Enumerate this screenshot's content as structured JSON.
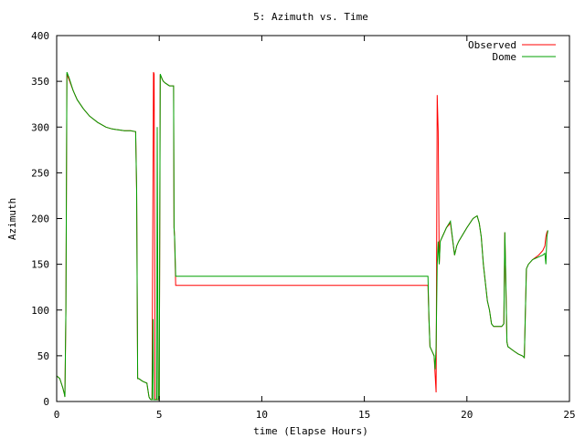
{
  "chart_data": {
    "type": "line",
    "title": "5: Azimuth vs. Time",
    "xlabel": "time (Elapse Hours)",
    "ylabel": "Azimuth",
    "xlim": [
      0,
      25
    ],
    "ylim": [
      0,
      400
    ],
    "xticks": [
      "0",
      "5",
      "10",
      "15",
      "20",
      "25"
    ],
    "yticks": [
      "0",
      "50",
      "100",
      "150",
      "200",
      "250",
      "300",
      "350",
      "400"
    ],
    "grid": false,
    "legend_position": "top-right",
    "series": [
      {
        "name": "Observed",
        "color": "#ff0000",
        "x": [
          0,
          0.15,
          0.3,
          0.38,
          0.4,
          0.45,
          0.5,
          0.6,
          0.8,
          1.0,
          1.3,
          1.6,
          2.0,
          2.4,
          2.7,
          3.0,
          3.3,
          3.6,
          3.85,
          3.9,
          3.95,
          4.0,
          4.2,
          4.4,
          4.5,
          4.55,
          4.6,
          4.65,
          4.7,
          4.72,
          4.75,
          4.8,
          4.85,
          4.88,
          4.9,
          4.95,
          5.0,
          5.05,
          5.1,
          5.15,
          5.2,
          5.3,
          5.5,
          5.7,
          5.72,
          5.75,
          5.8,
          6.0,
          8.0,
          10.0,
          12.0,
          14.0,
          16.0,
          18.0,
          18.1,
          18.15,
          18.2,
          18.3,
          18.4,
          18.45,
          18.5,
          18.55,
          18.6,
          18.65,
          18.7,
          18.8,
          19.0,
          19.2,
          19.4,
          19.5,
          19.6,
          20.0,
          20.3,
          20.5,
          20.6,
          20.7,
          20.8,
          20.9,
          21.0,
          21.1,
          21.2,
          21.3,
          21.4,
          21.5,
          21.6,
          21.7,
          21.8,
          21.85,
          21.9,
          21.95,
          22.0,
          22.3,
          22.5,
          22.7,
          22.8,
          22.9,
          23.0,
          23.2,
          23.5,
          23.7,
          23.8,
          23.85,
          23.9,
          23.95
        ],
        "y": [
          28,
          25,
          15,
          8,
          5,
          100,
          358,
          352,
          340,
          330,
          320,
          312,
          305,
          300,
          298,
          297,
          296,
          296,
          295,
          230,
          25,
          25,
          22,
          20,
          5,
          3,
          2,
          2,
          270,
          360,
          358,
          3,
          2,
          2,
          2,
          2,
          2,
          356,
          355,
          352,
          350,
          348,
          345,
          345,
          190,
          180,
          127,
          127,
          127,
          127,
          127,
          127,
          127,
          127,
          127,
          90,
          60,
          55,
          50,
          30,
          10,
          335,
          295,
          150,
          175,
          180,
          190,
          195,
          160,
          170,
          175,
          190,
          200,
          203,
          195,
          180,
          150,
          130,
          110,
          100,
          85,
          82,
          82,
          82,
          82,
          82,
          85,
          185,
          130,
          65,
          60,
          55,
          52,
          50,
          48,
          145,
          150,
          155,
          160,
          165,
          170,
          180,
          185,
          187
        ]
      },
      {
        "name": "Dome",
        "color": "#00a000",
        "x": [
          0,
          0.15,
          0.3,
          0.38,
          0.4,
          0.45,
          0.5,
          0.6,
          0.8,
          1.0,
          1.3,
          1.6,
          2.0,
          2.4,
          2.7,
          3.0,
          3.3,
          3.6,
          3.85,
          3.9,
          3.95,
          4.0,
          4.2,
          4.4,
          4.5,
          4.55,
          4.6,
          4.65,
          4.7,
          4.72,
          4.75,
          4.8,
          4.85,
          4.88,
          4.9,
          4.95,
          5.0,
          5.05,
          5.1,
          5.15,
          5.2,
          5.3,
          5.5,
          5.7,
          5.72,
          5.75,
          5.8,
          6.0,
          8.0,
          10.0,
          12.0,
          14.0,
          16.0,
          18.0,
          18.1,
          18.15,
          18.2,
          18.3,
          18.4,
          18.45,
          18.5,
          18.55,
          18.6,
          18.65,
          18.7,
          18.8,
          19.0,
          19.2,
          19.4,
          19.5,
          19.6,
          20.0,
          20.3,
          20.5,
          20.6,
          20.7,
          20.8,
          20.9,
          21.0,
          21.1,
          21.2,
          21.3,
          21.4,
          21.5,
          21.6,
          21.7,
          21.8,
          21.85,
          21.9,
          21.95,
          22.0,
          22.3,
          22.5,
          22.7,
          22.8,
          22.9,
          23.0,
          23.2,
          23.5,
          23.7,
          23.8,
          23.85,
          23.9,
          23.95
        ],
        "y": [
          28,
          25,
          15,
          8,
          5,
          100,
          360,
          354,
          340,
          330,
          320,
          312,
          305,
          300,
          298,
          297,
          296,
          296,
          295,
          230,
          25,
          25,
          22,
          20,
          5,
          3,
          2,
          2,
          90,
          2,
          2,
          2,
          2,
          2,
          300,
          2,
          2,
          358,
          355,
          352,
          350,
          348,
          345,
          345,
          190,
          180,
          137,
          137,
          137,
          137,
          137,
          137,
          137,
          137,
          137,
          90,
          60,
          55,
          50,
          35,
          60,
          150,
          175,
          150,
          175,
          180,
          190,
          197,
          160,
          170,
          175,
          190,
          200,
          203,
          195,
          180,
          150,
          130,
          110,
          100,
          85,
          82,
          82,
          82,
          82,
          82,
          85,
          185,
          130,
          65,
          60,
          55,
          52,
          50,
          48,
          145,
          150,
          155,
          158,
          160,
          162,
          150,
          180,
          187
        ]
      }
    ]
  }
}
